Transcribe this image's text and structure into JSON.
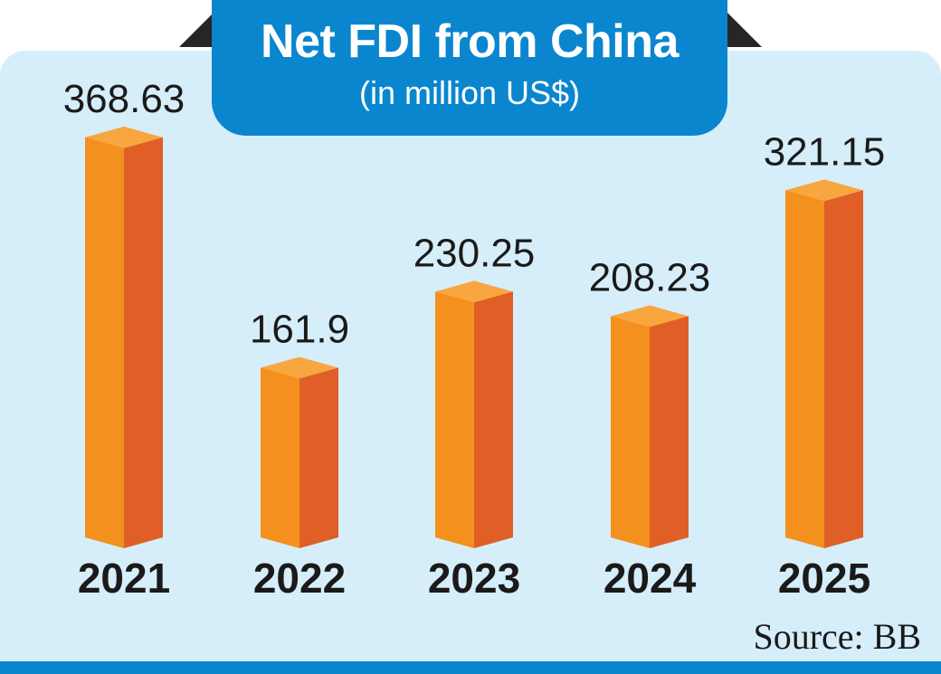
{
  "header": {
    "title": "Net FDI from China",
    "subtitle": "(in million US$)"
  },
  "source": "Source: BB",
  "colors": {
    "panel": "#d6eef9",
    "accent_blue": "#0a86cf",
    "bar_front": "#f4901e",
    "bar_side": "#e05f26",
    "bar_top": "#f7a640"
  },
  "chart_data": {
    "type": "bar",
    "title": "Net FDI from China",
    "subtitle": "(in million US$)",
    "categories": [
      "2021",
      "2022",
      "2023",
      "2024",
      "2025"
    ],
    "values": [
      368.63,
      161.9,
      230.25,
      208.23,
      321.15
    ],
    "value_labels": [
      "368.63",
      "161.9",
      "230.25",
      "208.23",
      "321.15"
    ],
    "xlabel": "",
    "ylabel": "",
    "grid": false,
    "legend": "none"
  }
}
